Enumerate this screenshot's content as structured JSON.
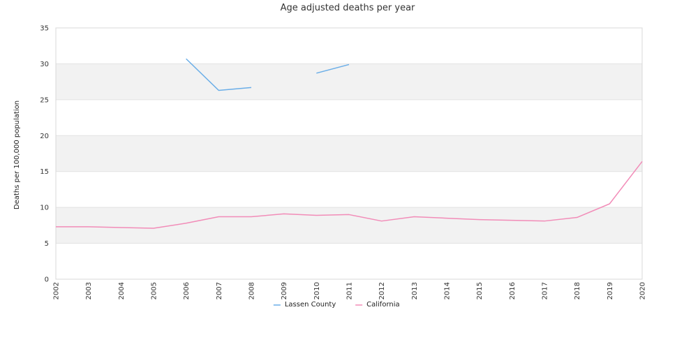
{
  "chart_data": {
    "type": "line",
    "title": "Age adjusted deaths per year",
    "xlabel": "",
    "ylabel": "Deaths per 100,000 population",
    "ylim": [
      0,
      35
    ],
    "yticks": [
      0,
      5,
      10,
      15,
      20,
      25,
      30,
      35
    ],
    "categories": [
      "2002",
      "2003",
      "2004",
      "2005",
      "2006",
      "2007",
      "2008",
      "2009",
      "2010",
      "2011",
      "2012",
      "2013",
      "2014",
      "2015",
      "2016",
      "2017",
      "2018",
      "2019",
      "2020"
    ],
    "grid": "alternating horizontal bands",
    "legend_position": "bottom",
    "series": [
      {
        "name": "Lassen County",
        "color": "#6aaee8",
        "values": [
          null,
          null,
          null,
          null,
          30.7,
          26.3,
          26.7,
          null,
          28.7,
          29.9,
          null,
          null,
          null,
          null,
          null,
          null,
          null,
          null,
          null
        ]
      },
      {
        "name": "California",
        "color": "#f28cb8",
        "values": [
          7.3,
          7.3,
          7.2,
          7.1,
          7.8,
          8.7,
          8.7,
          9.1,
          8.9,
          9.0,
          8.1,
          8.7,
          8.5,
          8.3,
          8.2,
          8.1,
          8.6,
          10.5,
          16.4
        ]
      }
    ]
  }
}
